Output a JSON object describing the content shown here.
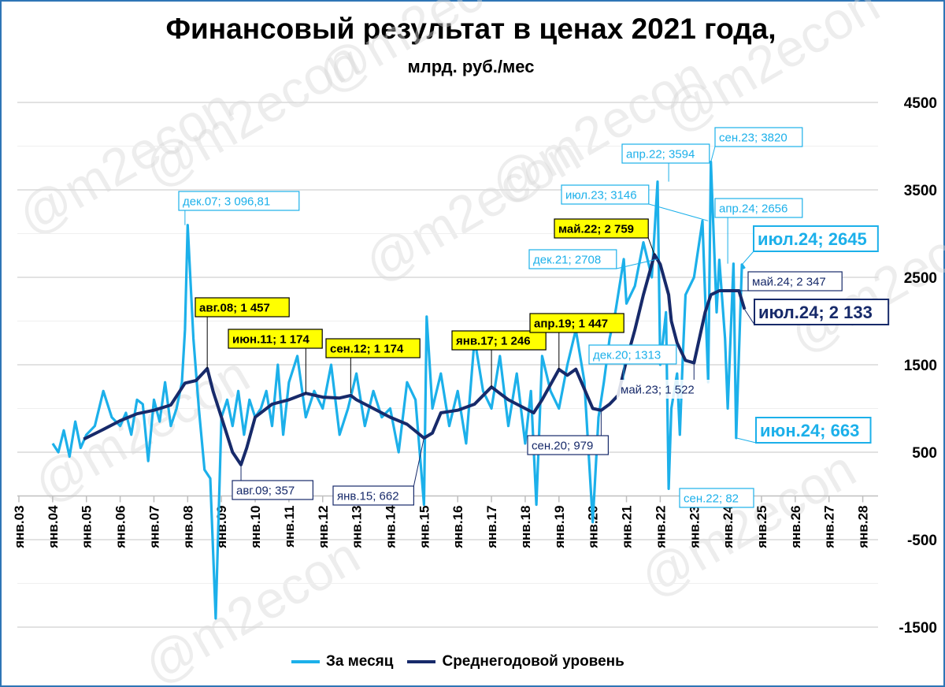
{
  "title": "Финансовый результат в ценах 2021 года,",
  "subtitle": "млрд. руб./мес",
  "colors": {
    "monthly": "#1cb0ea",
    "average": "#172a6a",
    "grid": "#d9d9d9",
    "frame": "#2e75b6",
    "highlight": "#ffff00"
  },
  "watermark": "@m2econ",
  "chart_data": {
    "type": "line",
    "ylim": [
      -1500,
      4500
    ],
    "yticks": [
      "4500",
      "3500",
      "2500",
      "1500",
      "500",
      "-500",
      "-1500"
    ],
    "x_categories": [
      "янв.03",
      "янв.04",
      "янв.05",
      "янв.06",
      "янв.07",
      "янв.08",
      "янв.09",
      "янв.10",
      "янв.11",
      "янв.12",
      "янв.13",
      "янв.14",
      "янв.15",
      "янв.16",
      "янв.17",
      "янв.18",
      "янв.19",
      "янв.20",
      "янв.21",
      "янв.22",
      "янв.23",
      "янв.24",
      "янв.25",
      "янв.26",
      "янв.27",
      "янв.28"
    ],
    "legend_position": "bottom",
    "grid": true,
    "series": [
      {
        "name": "За месяц",
        "color": "#1cb0ea",
        "x": [
          2004.0,
          2004.17,
          2004.33,
          2004.5,
          2004.67,
          2004.83,
          2005.0,
          2005.25,
          2005.5,
          2005.75,
          2006.0,
          2006.17,
          2006.33,
          2006.5,
          2006.67,
          2006.83,
          2007.0,
          2007.17,
          2007.33,
          2007.5,
          2007.67,
          2007.83,
          2007.92,
          2008.0,
          2008.17,
          2008.33,
          2008.5,
          2008.67,
          2008.83,
          2009.0,
          2009.17,
          2009.33,
          2009.5,
          2009.67,
          2009.83,
          2010.0,
          2010.17,
          2010.33,
          2010.5,
          2010.67,
          2010.83,
          2011.0,
          2011.25,
          2011.5,
          2011.75,
          2012.0,
          2012.25,
          2012.5,
          2012.75,
          2013.0,
          2013.25,
          2013.5,
          2013.75,
          2014.0,
          2014.25,
          2014.5,
          2014.75,
          2015.0,
          2015.08,
          2015.25,
          2015.5,
          2015.75,
          2016.0,
          2016.25,
          2016.5,
          2016.75,
          2017.0,
          2017.25,
          2017.5,
          2017.75,
          2018.0,
          2018.17,
          2018.33,
          2018.5,
          2018.75,
          2019.0,
          2019.25,
          2019.5,
          2019.75,
          2020.0,
          2020.17,
          2020.33,
          2020.5,
          2020.67,
          2020.92,
          2021.0,
          2021.25,
          2021.5,
          2021.75,
          2021.92,
          2022.0,
          2022.17,
          2022.25,
          2022.33,
          2022.5,
          2022.58,
          2022.67,
          2022.75,
          2023.0,
          2023.25,
          2023.42,
          2023.5,
          2023.67,
          2023.75,
          2023.92,
          2024.0,
          2024.17,
          2024.25,
          2024.42,
          2024.5
        ],
        "y": [
          600,
          500,
          750,
          450,
          850,
          550,
          700,
          800,
          1200,
          900,
          800,
          950,
          700,
          1100,
          1050,
          400,
          1100,
          850,
          1300,
          800,
          1000,
          1300,
          1900,
          3097,
          1800,
          1000,
          300,
          200,
          -1400,
          900,
          1100,
          800,
          1200,
          700,
          1100,
          900,
          1000,
          1200,
          800,
          1500,
          700,
          1300,
          1600,
          900,
          1200,
          1000,
          1500,
          700,
          1000,
          1400,
          800,
          1200,
          900,
          1000,
          500,
          1300,
          1100,
          -100,
          2050,
          1000,
          1400,
          800,
          1200,
          600,
          1800,
          1200,
          1000,
          1600,
          800,
          1400,
          600,
          1200,
          -100,
          1600,
          1200,
          1000,
          1500,
          1900,
          1313,
          -300,
          900,
          1300,
          1800,
          2100,
          2708,
          2200,
          2400,
          2900,
          2500,
          3594,
          1500,
          2100,
          82,
          1000,
          1400,
          700,
          1600,
          2300,
          2500,
          3146,
          1300,
          3820,
          2100,
          2700,
          1800,
          1000,
          2656,
          663,
          2645,
          2600
        ],
        "labels": [
          {
            "text": "дек.07;  3 096,81"
          },
          {
            "text": "дек.20; 1313"
          },
          {
            "text": "дек.21; 2708"
          },
          {
            "text": "апр.22; 3594"
          },
          {
            "text": "июл.23; 3146"
          },
          {
            "text": "сен.22; 82"
          },
          {
            "text": "сен.23; 3820"
          },
          {
            "text": "апр.24; 2656"
          },
          {
            "text": "июл.24; 2645"
          },
          {
            "text": "июн.24; 663"
          }
        ]
      },
      {
        "name": "Среднегодовой уровень",
        "color": "#172a6a",
        "x": [
          2004.92,
          2005.5,
          2006.0,
          2006.5,
          2007.0,
          2007.5,
          2007.92,
          2008.25,
          2008.58,
          2008.75,
          2009.0,
          2009.33,
          2009.58,
          2009.75,
          2010.0,
          2010.5,
          2011.0,
          2011.5,
          2012.0,
          2012.5,
          2012.83,
          2013.0,
          2013.5,
          2014.0,
          2014.5,
          2015.0,
          2015.25,
          2015.5,
          2016.0,
          2016.5,
          2017.0,
          2017.5,
          2018.0,
          2018.25,
          2018.5,
          2019.0,
          2019.25,
          2019.5,
          2020.0,
          2020.25,
          2020.5,
          2020.75,
          2021.0,
          2021.25,
          2021.5,
          2021.83,
          2022.0,
          2022.25,
          2022.33,
          2022.5,
          2022.75,
          2023.0,
          2023.33,
          2023.5,
          2023.75,
          2024.0,
          2024.33,
          2024.5
        ],
        "y": [
          650,
          760,
          860,
          940,
          980,
          1040,
          1290,
          1320,
          1457,
          1200,
          900,
          500,
          357,
          550,
          900,
          1050,
          1100,
          1174,
          1130,
          1120,
          1150,
          1100,
          1000,
          900,
          820,
          662,
          720,
          950,
          980,
          1050,
          1246,
          1100,
          1000,
          950,
          1100,
          1447,
          1380,
          1450,
          1000,
          979,
          1050,
          1150,
          1550,
          1900,
          2300,
          2759,
          2650,
          2300,
          2000,
          1750,
          1550,
          1522,
          2100,
          2300,
          2347,
          2347,
          2347,
          2133
        ],
        "labels": [
          {
            "text": "авг.08; 1 457"
          },
          {
            "text": "авг.09; 357"
          },
          {
            "text": "июн.11; 1 174"
          },
          {
            "text": "сен.12; 1 174"
          },
          {
            "text": "янв.15; 662"
          },
          {
            "text": "янв.17; 1 246"
          },
          {
            "text": "апр.19; 1 447"
          },
          {
            "text": "сен.20; 979"
          },
          {
            "text": "май.22; 2 759"
          },
          {
            "text": "май.23; 1 522"
          },
          {
            "text": "май.24; 2 347"
          },
          {
            "text": "июл.24; 2 133"
          }
        ]
      }
    ]
  }
}
